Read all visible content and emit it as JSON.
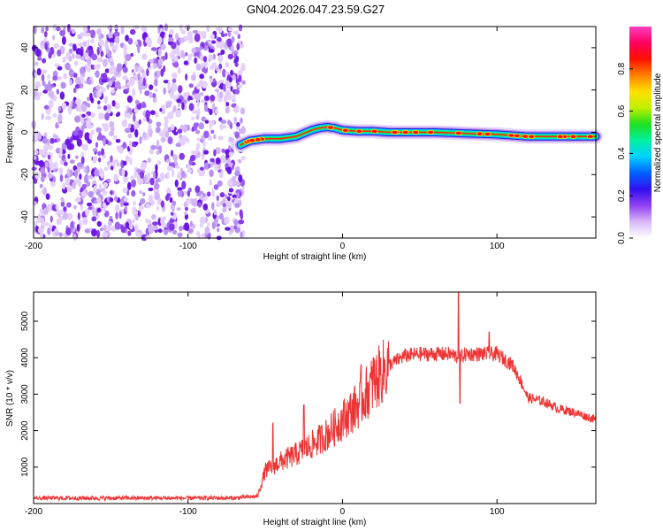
{
  "title": "GN04.2026.047.23.59.G27",
  "chart_data": [
    {
      "type": "heatmap",
      "xlabel": "Height of straight line (km)",
      "ylabel": "Frequency (Hz)",
      "xlim": [
        -200,
        164
      ],
      "ylim": [
        -50,
        50
      ],
      "xticks": [
        -200,
        -100,
        0,
        100
      ],
      "yticks": [
        -40,
        -20,
        0,
        20,
        40
      ],
      "colorbar": {
        "label": "Normalized spectral amplitude",
        "range": [
          0,
          1
        ],
        "ticks": [
          "0.0",
          "0.2",
          "0.4",
          "0.6",
          "0.8"
        ],
        "colors": [
          "#ffffff",
          "#d8b8f8",
          "#9040f0",
          "#3010f0",
          "#0060ff",
          "#00d0ff",
          "#00f0a0",
          "#20e020",
          "#c0f000",
          "#ffe000",
          "#ff8000",
          "#ff1000",
          "#ff0060",
          "#ff40c0"
        ]
      },
      "noise_region_x": [
        -200,
        -64
      ],
      "signal_trace": {
        "x": [
          -66,
          -60,
          -50,
          -40,
          -30,
          -20,
          -15,
          -10,
          -5,
          0,
          10,
          20,
          30,
          40,
          60,
          80,
          100,
          120,
          140,
          164
        ],
        "y": [
          -6,
          -4,
          -3,
          -3,
          -2,
          1,
          2,
          2.5,
          2,
          1,
          0.5,
          0.5,
          0,
          0,
          0,
          -0.5,
          -1,
          -2,
          -2,
          -2
        ]
      }
    },
    {
      "type": "line",
      "xlabel": "Height of straight line (km)",
      "ylabel": "SNR (10 * v/v)",
      "xlim": [
        -200,
        164
      ],
      "ylim": [
        0,
        5800
      ],
      "xticks": [
        -200,
        -100,
        0,
        100
      ],
      "yticks": [
        1000,
        2000,
        3000,
        4000,
        5000
      ],
      "color": "#ee3333",
      "envelope": {
        "x": [
          -200,
          -150,
          -100,
          -70,
          -55,
          -50,
          -40,
          -30,
          -20,
          -10,
          0,
          10,
          20,
          30,
          40,
          50,
          60,
          70,
          75,
          80,
          90,
          100,
          110,
          115,
          120,
          130,
          140,
          150,
          164
        ],
        "y": [
          150,
          150,
          150,
          150,
          200,
          900,
          1150,
          1350,
          1600,
          1900,
          2300,
          2700,
          3300,
          3800,
          4050,
          4100,
          4100,
          4100,
          4000,
          4100,
          4100,
          4100,
          3800,
          3400,
          2900,
          2800,
          2600,
          2500,
          2300
        ]
      },
      "spikes": [
        {
          "x": -45,
          "y": 2200
        },
        {
          "x": -25,
          "y": 2700
        },
        {
          "x": 12,
          "y": 3800
        },
        {
          "x": 20,
          "y": 4000
        },
        {
          "x": 75,
          "y": 5800
        },
        {
          "x": 76,
          "y": 2750
        },
        {
          "x": 95,
          "y": 4700
        }
      ]
    }
  ]
}
